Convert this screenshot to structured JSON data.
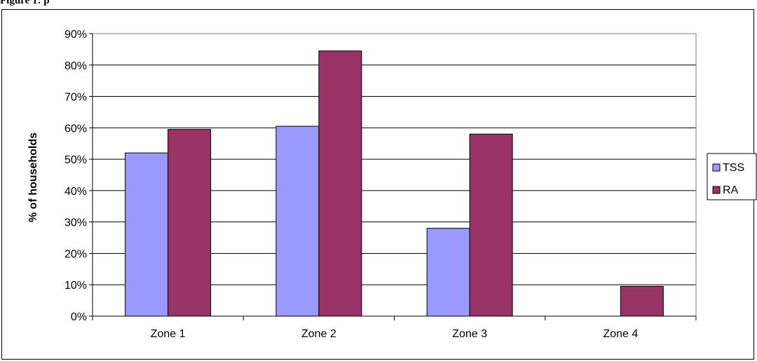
{
  "caption": "Figure 1: p",
  "chart_data": {
    "type": "bar",
    "title": "",
    "xlabel": "",
    "ylabel": "% of households",
    "categories": [
      "Zone 1",
      "Zone 2",
      "Zone 3",
      "Zone 4"
    ],
    "ylim": [
      0,
      90
    ],
    "yticks": [
      "0%",
      "10%",
      "20%",
      "30%",
      "40%",
      "50%",
      "60%",
      "70%",
      "80%",
      "90%"
    ],
    "grid": true,
    "legend_position": "right",
    "series": [
      {
        "name": "TSS",
        "color": "#9999ff",
        "values": [
          52,
          60.5,
          28,
          0
        ]
      },
      {
        "name": "RA",
        "color": "#993366",
        "values": [
          59.5,
          84.5,
          58,
          9.5
        ]
      }
    ]
  }
}
